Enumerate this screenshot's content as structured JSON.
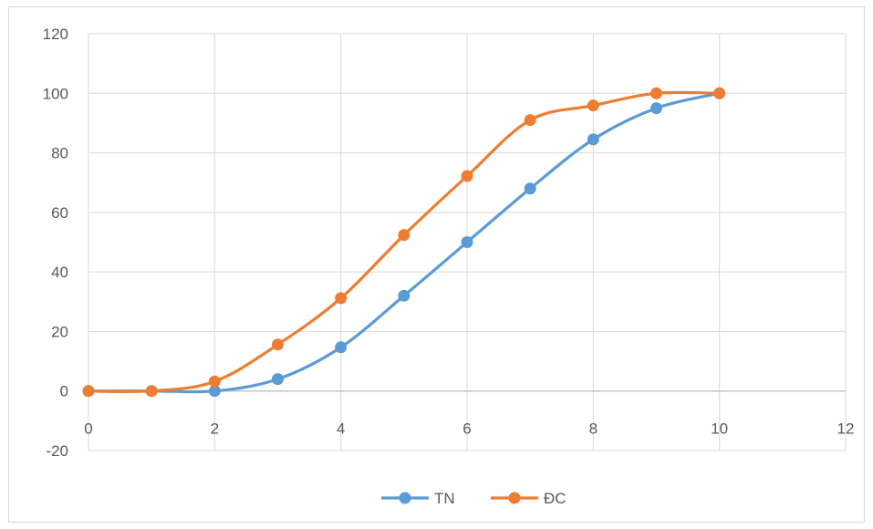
{
  "chart_data": {
    "type": "line",
    "title": "",
    "xlabel": "",
    "ylabel": "",
    "xlim": [
      0,
      12
    ],
    "ylim": [
      -20,
      120
    ],
    "x_ticks": [
      0,
      2,
      4,
      6,
      8,
      10,
      12
    ],
    "y_ticks": [
      -20,
      0,
      20,
      40,
      60,
      80,
      100,
      120
    ],
    "grid": true,
    "smooth": true,
    "legend_position": "bottom",
    "series": [
      {
        "name": "TN",
        "color": "#5b9bd5",
        "x": [
          0,
          1,
          2,
          3,
          4,
          5,
          6,
          7,
          8,
          9,
          10
        ],
        "values": [
          0,
          0,
          0,
          4,
          14.7,
          32,
          50,
          68,
          84.5,
          95,
          100
        ]
      },
      {
        "name": "ĐC",
        "color": "#ed7d31",
        "x": [
          0,
          1,
          2,
          3,
          4,
          5,
          6,
          7,
          8,
          9,
          10
        ],
        "values": [
          0,
          0,
          3.2,
          15.6,
          31.2,
          52.4,
          72.2,
          91,
          95.9,
          100,
          100
        ]
      }
    ]
  }
}
